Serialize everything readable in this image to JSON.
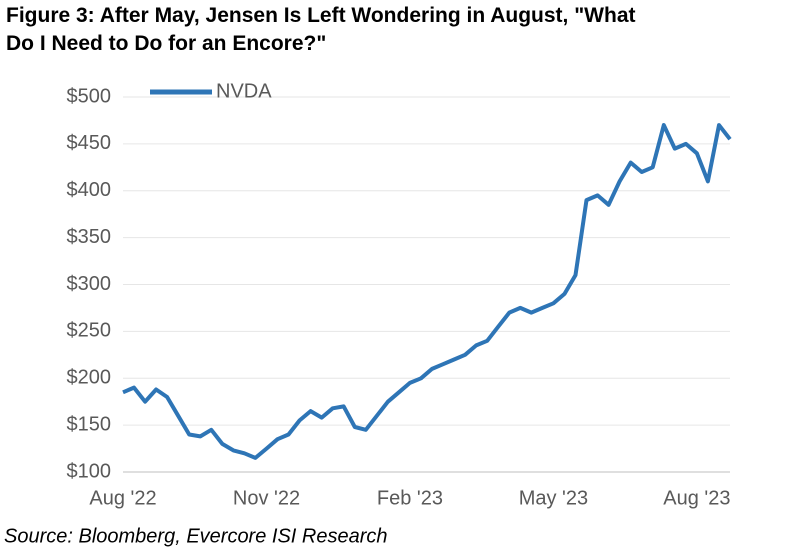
{
  "chart_data": {
    "type": "line",
    "title": "Figure 3: After May, Jensen Is Left Wondering in August, \"What Do I Need to Do for an Encore?\"",
    "source": "Source: Bloomberg, Evercore ISI Research",
    "categories": [
      "Aug '22",
      null,
      null,
      null,
      null,
      null,
      null,
      null,
      null,
      null,
      null,
      null,
      null,
      "Nov '22",
      null,
      null,
      null,
      null,
      null,
      null,
      null,
      null,
      null,
      null,
      null,
      null,
      "Feb '23",
      null,
      null,
      null,
      null,
      null,
      null,
      null,
      null,
      null,
      null,
      null,
      null,
      "May '23",
      null,
      null,
      null,
      null,
      null,
      null,
      null,
      null,
      null,
      null,
      null,
      null,
      "Aug '23",
      null,
      null,
      null
    ],
    "series": [
      {
        "name": "NVDA",
        "color": "#2e75b6",
        "values": [
          185,
          190,
          175,
          188,
          180,
          160,
          140,
          138,
          145,
          130,
          123,
          120,
          115,
          125,
          135,
          140,
          155,
          165,
          158,
          168,
          170,
          148,
          145,
          160,
          175,
          185,
          195,
          200,
          210,
          215,
          220,
          225,
          235,
          240,
          255,
          270,
          275,
          270,
          275,
          280,
          290,
          310,
          390,
          395,
          385,
          410,
          430,
          420,
          425,
          470,
          445,
          450,
          440,
          410,
          470,
          455
        ]
      }
    ],
    "ylim": [
      100,
      500
    ],
    "yticks": [
      {
        "value": 100,
        "label": "$100"
      },
      {
        "value": 150,
        "label": "$150"
      },
      {
        "value": 200,
        "label": "$200"
      },
      {
        "value": 250,
        "label": "$250"
      },
      {
        "value": 300,
        "label": "$300"
      },
      {
        "value": 350,
        "label": "$350"
      },
      {
        "value": 400,
        "label": "$400"
      },
      {
        "value": 450,
        "label": "$450"
      },
      {
        "value": 500,
        "label": "$500"
      }
    ],
    "grid": true
  }
}
